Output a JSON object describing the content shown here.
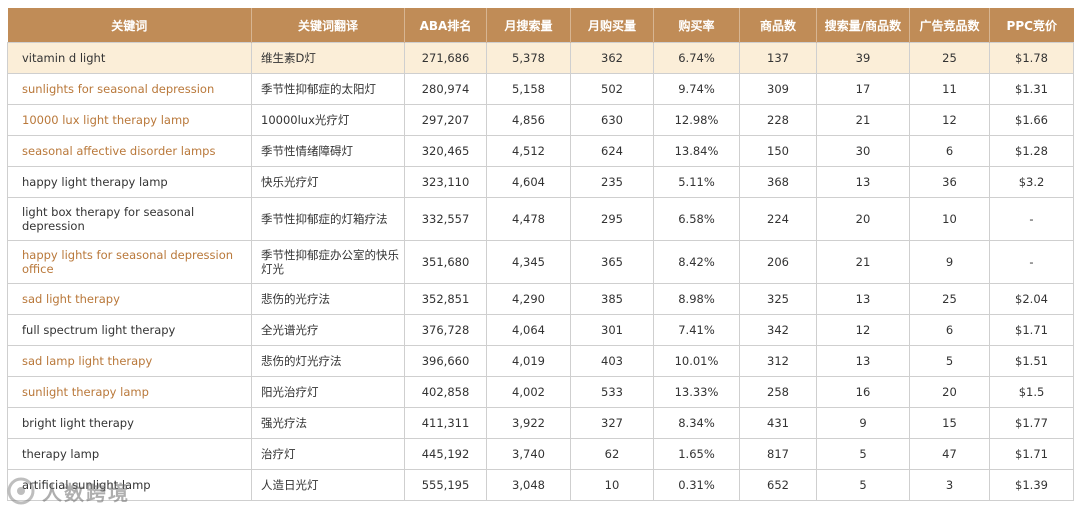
{
  "headers": [
    "关键词",
    "关键词翻译",
    "ABA排名",
    "月搜索量",
    "月购买量",
    "购买率",
    "商品数",
    "搜索量/商品数",
    "广告竞品数",
    "PPC竞价"
  ],
  "rows": [
    {
      "kw": "vitamin d light",
      "tr": "维生素D灯",
      "aba": "271,686",
      "search": "5,378",
      "buy": "362",
      "rate": "6.74%",
      "products": "137",
      "ratio": "39",
      "ads": "25",
      "ppc": "$1.78",
      "style": "hl",
      "tall": false
    },
    {
      "kw": "sunlights for seasonal depression",
      "tr": "季节性抑郁症的太阳灯",
      "aba": "280,974",
      "search": "5,158",
      "buy": "502",
      "rate": "9.74%",
      "products": "309",
      "ratio": "17",
      "ads": "11",
      "ppc": "$1.31",
      "style": "orange",
      "tall": false
    },
    {
      "kw": "10000 lux light therapy lamp",
      "tr": "10000lux光疗灯",
      "aba": "297,207",
      "search": "4,856",
      "buy": "630",
      "rate": "12.98%",
      "products": "228",
      "ratio": "21",
      "ads": "12",
      "ppc": "$1.66",
      "style": "orange",
      "tall": false
    },
    {
      "kw": "seasonal affective disorder lamps",
      "tr": "季节性情绪障碍灯",
      "aba": "320,465",
      "search": "4,512",
      "buy": "624",
      "rate": "13.84%",
      "products": "150",
      "ratio": "30",
      "ads": "6",
      "ppc": "$1.28",
      "style": "orange",
      "tall": false
    },
    {
      "kw": "happy light therapy lamp",
      "tr": "快乐光疗灯",
      "aba": "323,110",
      "search": "4,604",
      "buy": "235",
      "rate": "5.11%",
      "products": "368",
      "ratio": "13",
      "ads": "36",
      "ppc": "$3.2",
      "style": "normal",
      "tall": false
    },
    {
      "kw": "light box therapy for seasonal depression",
      "tr": "季节性抑郁症的灯箱疗法",
      "aba": "332,557",
      "search": "4,478",
      "buy": "295",
      "rate": "6.58%",
      "products": "224",
      "ratio": "20",
      "ads": "10",
      "ppc": "-",
      "style": "normal",
      "tall": true
    },
    {
      "kw": "happy lights for seasonal depression office",
      "tr": "季节性抑郁症办公室的快乐灯光",
      "aba": "351,680",
      "search": "4,345",
      "buy": "365",
      "rate": "8.42%",
      "products": "206",
      "ratio": "21",
      "ads": "9",
      "ppc": "-",
      "style": "orange",
      "tall": true
    },
    {
      "kw": "sad light therapy",
      "tr": "悲伤的光疗法",
      "aba": "352,851",
      "search": "4,290",
      "buy": "385",
      "rate": "8.98%",
      "products": "325",
      "ratio": "13",
      "ads": "25",
      "ppc": "$2.04",
      "style": "orange",
      "tall": false
    },
    {
      "kw": "full spectrum light therapy",
      "tr": "全光谱光疗",
      "aba": "376,728",
      "search": "4,064",
      "buy": "301",
      "rate": "7.41%",
      "products": "342",
      "ratio": "12",
      "ads": "6",
      "ppc": "$1.71",
      "style": "normal",
      "tall": false
    },
    {
      "kw": "sad lamp light therapy",
      "tr": "悲伤的灯光疗法",
      "aba": "396,660",
      "search": "4,019",
      "buy": "403",
      "rate": "10.01%",
      "products": "312",
      "ratio": "13",
      "ads": "5",
      "ppc": "$1.51",
      "style": "orange",
      "tall": false
    },
    {
      "kw": "sunlight therapy lamp",
      "tr": "阳光治疗灯",
      "aba": "402,858",
      "search": "4,002",
      "buy": "533",
      "rate": "13.33%",
      "products": "258",
      "ratio": "16",
      "ads": "20",
      "ppc": "$1.5",
      "style": "orange",
      "tall": false
    },
    {
      "kw": "bright light therapy",
      "tr": "强光疗法",
      "aba": "411,311",
      "search": "3,922",
      "buy": "327",
      "rate": "8.34%",
      "products": "431",
      "ratio": "9",
      "ads": "15",
      "ppc": "$1.77",
      "style": "normal",
      "tall": false
    },
    {
      "kw": "therapy lamp",
      "tr": "治疗灯",
      "aba": "445,192",
      "search": "3,740",
      "buy": "62",
      "rate": "1.65%",
      "products": "817",
      "ratio": "5",
      "ads": "47",
      "ppc": "$1.71",
      "style": "normal",
      "tall": false
    },
    {
      "kw": "artificial sunlight lamp",
      "tr": "人造日光灯",
      "aba": "555,195",
      "search": "3,048",
      "buy": "10",
      "rate": "0.31%",
      "products": "652",
      "ratio": "5",
      "ads": "3",
      "ppc": "$1.39",
      "style": "normal",
      "tall": false
    }
  ],
  "watermark": {
    "text": "人数跨境",
    "icon": "brand-logo-icon"
  }
}
